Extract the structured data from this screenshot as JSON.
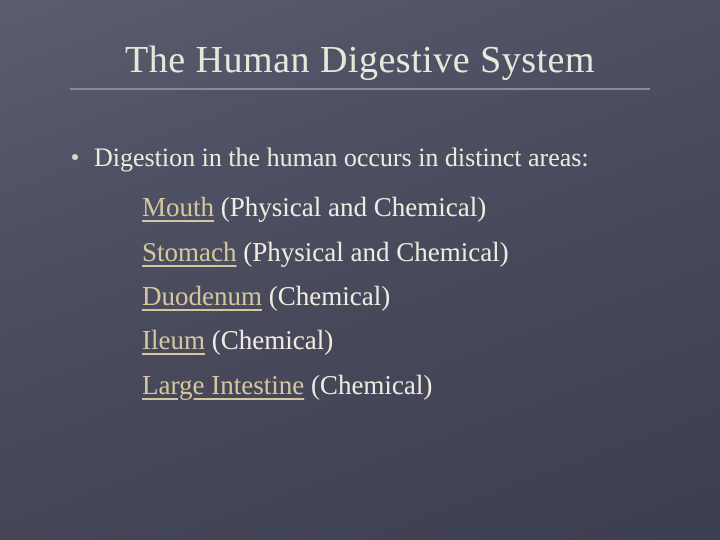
{
  "colors": {
    "background_gradient_from": "#5a5d6e",
    "background_gradient_to": "#3c3e51",
    "title_color": "#e9e6db",
    "title_underline": "#888a99",
    "body_text_color": "#eceade",
    "keyword_color": "#d4c79e",
    "flourish_color": "#c8b890",
    "bullet_dot_color": "#d9d6cc",
    "paren_color": "#eeece1"
  },
  "typography": {
    "title_fontsize": 38,
    "body_fontsize": 26,
    "item_fontsize": 27,
    "font_family": "Georgia, serif"
  },
  "title": "The Human Digestive System",
  "intro": "Digestion in the human occurs in distinct areas:",
  "flourish_glyph": "",
  "items": [
    {
      "keyword": "Mouth",
      "paren": "(Physical and Chemical)"
    },
    {
      "keyword": "Stomach",
      "paren": "(Physical and Chemical)"
    },
    {
      "keyword": "Duodenum",
      "paren": "(Chemical)"
    },
    {
      "keyword": "Ileum",
      "paren": "(Chemical)"
    },
    {
      "keyword": "Large Intestine",
      "paren": "(Chemical)"
    }
  ]
}
